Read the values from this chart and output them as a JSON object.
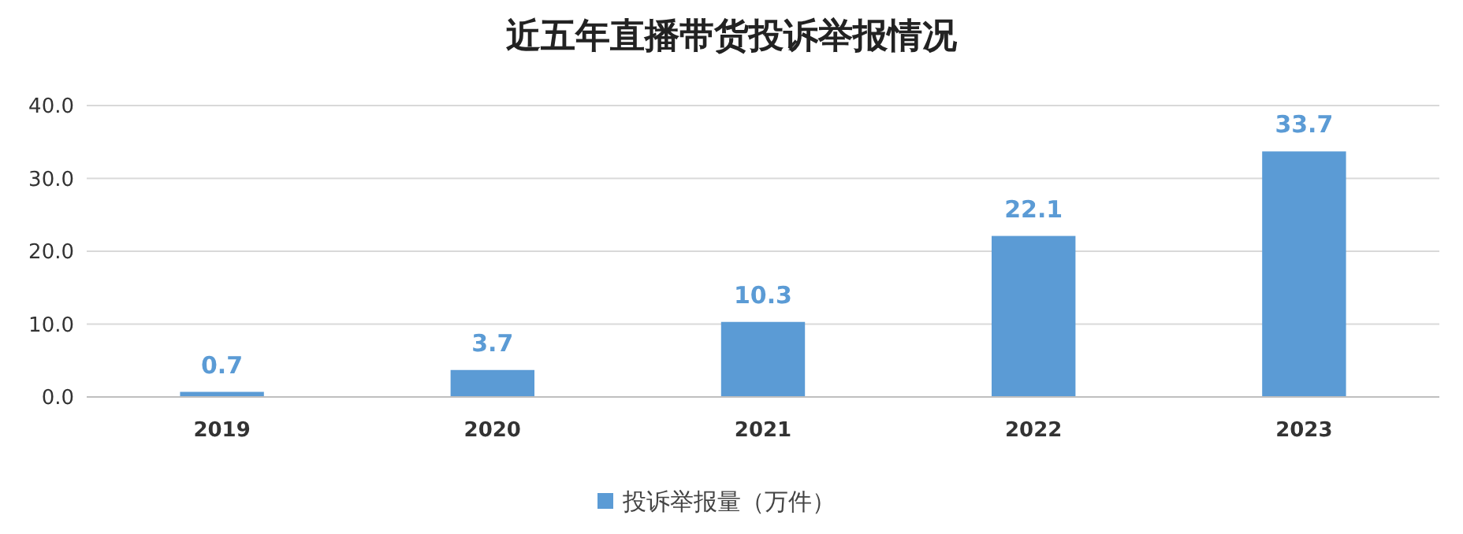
{
  "chart_data": {
    "type": "bar",
    "title": "近五年直播带货投诉举报情况",
    "categories": [
      "2019",
      "2020",
      "2021",
      "2022",
      "2023"
    ],
    "series": [
      {
        "name": "投诉举报量（万件）",
        "color": "#5b9bd5",
        "values": [
          0.7,
          3.7,
          10.3,
          22.1,
          33.7
        ]
      }
    ],
    "ylim": [
      0,
      40
    ],
    "yticks": [
      {
        "value": 0,
        "label": "0.0"
      },
      {
        "value": 10,
        "label": "10.0"
      },
      {
        "value": 20,
        "label": "20.0"
      },
      {
        "value": 30,
        "label": "30.0"
      },
      {
        "value": 40,
        "label": "40.0"
      }
    ],
    "grid": "y",
    "data_labels": true,
    "legend": "bottom"
  }
}
